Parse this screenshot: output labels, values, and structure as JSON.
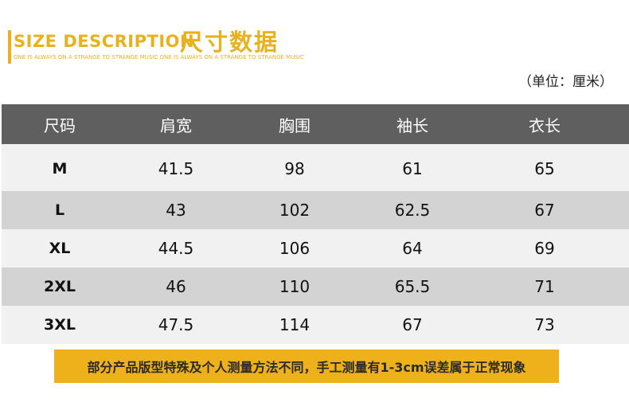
{
  "header": {
    "title_en": "SIZE DESCRIPTION",
    "title_cn": "尺寸数据",
    "tagline": "ONE IS ALWAYS ON A STRANGE TO STRANGE MUSIC ONE IS ALWAYS ON A STRANGE TO STRANGE MUSIC",
    "unit": "（单位：厘米）"
  },
  "colors": {
    "accent": "#e7b21e",
    "header_bg": "#5f5f5f",
    "row_light": "#f1f1f1",
    "row_dark": "#d3d3d3",
    "notice_bg": "#eeb11c"
  },
  "table": {
    "columns": [
      "尺码",
      "肩宽",
      "胸围",
      "袖长",
      "衣长"
    ],
    "rows": [
      [
        "M",
        "41.5",
        "98",
        "61",
        "65"
      ],
      [
        "L",
        "43",
        "102",
        "62.5",
        "67"
      ],
      [
        "XL",
        "44.5",
        "106",
        "64",
        "69"
      ],
      [
        "2XL",
        "46",
        "110",
        "65.5",
        "71"
      ],
      [
        "3XL",
        "47.5",
        "114",
        "67",
        "73"
      ]
    ]
  },
  "notice": "部分产品版型特殊及个人测量方法不同，手工测量有1-3cm误差属于正常现象"
}
